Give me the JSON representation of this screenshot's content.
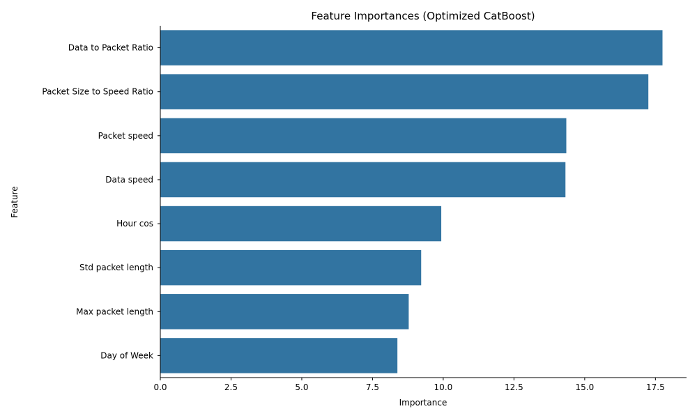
{
  "chart_data": {
    "type": "bar",
    "orientation": "horizontal",
    "title": "Feature Importances (Optimized CatBoost)",
    "xlabel": "Importance",
    "ylabel": "Feature",
    "categories": [
      "Data to Packet Ratio",
      "Packet Size to Speed Ratio",
      "Packet speed",
      "Data speed",
      "Hour cos",
      "Std packet length",
      "Max packet length",
      "Day of Week"
    ],
    "values": [
      17.75,
      17.25,
      14.35,
      14.32,
      9.93,
      9.22,
      8.78,
      8.38
    ],
    "xlim": [
      0,
      18.6
    ],
    "xticks": [
      0,
      2.5,
      5,
      7.5,
      10,
      12.5,
      15,
      17.5
    ],
    "xtick_labels": [
      "0.0",
      "2.5",
      "5.0",
      "7.5",
      "10.0",
      "12.5",
      "15.0",
      "17.5"
    ],
    "bar_color": "#3274a1",
    "grid": false,
    "legend": "none"
  }
}
